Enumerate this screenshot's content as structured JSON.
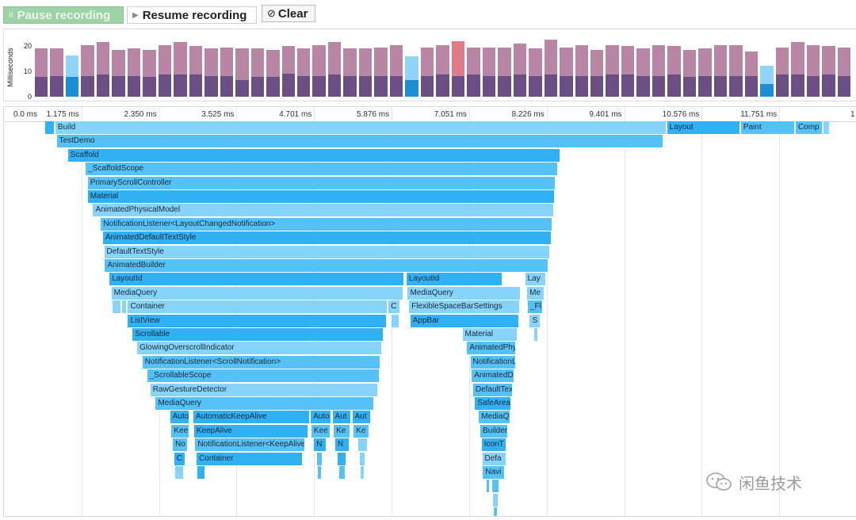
{
  "toolbar": {
    "pause_label": "Pause recording",
    "pause_glyph": "II",
    "resume_label": "Resume recording",
    "resume_glyph": "▶",
    "clear_label": "Clear",
    "clear_glyph": "⊘"
  },
  "frame_chart": {
    "y_axis_title": "Milliseconds",
    "y_ticks": [
      "20",
      "10",
      "0"
    ],
    "y_max": 22,
    "colors": {
      "cpu": "#6b4e84",
      "gpu": "#b985a5",
      "selected_cpu": "#1a8fd6",
      "selected_gpu": "#8fd4fb",
      "jank_gpu": "#e07a86"
    },
    "frames": [
      {
        "cpu": 7.5,
        "gpu": 11
      },
      {
        "cpu": 8,
        "gpu": 10.5
      },
      {
        "cpu": 7.5,
        "gpu": 8.5,
        "selected": true
      },
      {
        "cpu": 8,
        "gpu": 12
      },
      {
        "cpu": 8.5,
        "gpu": 12.5
      },
      {
        "cpu": 8,
        "gpu": 10
      },
      {
        "cpu": 8,
        "gpu": 10.5
      },
      {
        "cpu": 7.5,
        "gpu": 10.5
      },
      {
        "cpu": 8.5,
        "gpu": 11.5
      },
      {
        "cpu": 8.5,
        "gpu": 12.5
      },
      {
        "cpu": 8.5,
        "gpu": 11
      },
      {
        "cpu": 8,
        "gpu": 10.5
      },
      {
        "cpu": 8,
        "gpu": 11
      },
      {
        "cpu": 6.5,
        "gpu": 12
      },
      {
        "cpu": 7.5,
        "gpu": 11
      },
      {
        "cpu": 7.5,
        "gpu": 10.5
      },
      {
        "cpu": 9,
        "gpu": 10.5
      },
      {
        "cpu": 8,
        "gpu": 10.5
      },
      {
        "cpu": 8,
        "gpu": 12
      },
      {
        "cpu": 8.5,
        "gpu": 12.5
      },
      {
        "cpu": 8,
        "gpu": 10.5
      },
      {
        "cpu": 8,
        "gpu": 10.5
      },
      {
        "cpu": 8,
        "gpu": 11
      },
      {
        "cpu": 8,
        "gpu": 12
      },
      {
        "cpu": 6.5,
        "gpu": 9,
        "selected": true
      },
      {
        "cpu": 8,
        "gpu": 11
      },
      {
        "cpu": 8.5,
        "gpu": 11.5
      },
      {
        "cpu": 8,
        "gpu": 13.5,
        "jank": true
      },
      {
        "cpu": 8.5,
        "gpu": 10.5
      },
      {
        "cpu": 8,
        "gpu": 11
      },
      {
        "cpu": 8,
        "gpu": 11
      },
      {
        "cpu": 8.5,
        "gpu": 12
      },
      {
        "cpu": 8,
        "gpu": 10.5
      },
      {
        "cpu": 8.5,
        "gpu": 13.5
      },
      {
        "cpu": 8,
        "gpu": 11
      },
      {
        "cpu": 8,
        "gpu": 12
      },
      {
        "cpu": 8,
        "gpu": 10
      },
      {
        "cpu": 8.5,
        "gpu": 11.5
      },
      {
        "cpu": 8.5,
        "gpu": 11
      },
      {
        "cpu": 8,
        "gpu": 10.5
      },
      {
        "cpu": 8,
        "gpu": 12
      },
      {
        "cpu": 8.5,
        "gpu": 11
      },
      {
        "cpu": 7.5,
        "gpu": 10.5
      },
      {
        "cpu": 8,
        "gpu": 10.5
      },
      {
        "cpu": 8,
        "gpu": 12
      },
      {
        "cpu": 8,
        "gpu": 12
      },
      {
        "cpu": 8,
        "gpu": 9.5
      },
      {
        "cpu": 5,
        "gpu": 7,
        "selected": true
      },
      {
        "cpu": 8.5,
        "gpu": 10.5
      },
      {
        "cpu": 8.5,
        "gpu": 12.5
      },
      {
        "cpu": 8,
        "gpu": 12
      },
      {
        "cpu": 8.5,
        "gpu": 11
      },
      {
        "cpu": 8,
        "gpu": 11
      }
    ]
  },
  "timeline": {
    "total_ms": 12.926,
    "ticks": [
      {
        "label": "0.0 ms",
        "ms": 0
      },
      {
        "label": "1.175 ms",
        "ms": 1.175
      },
      {
        "label": "2.350 ms",
        "ms": 2.35
      },
      {
        "label": "3.525 ms",
        "ms": 3.525
      },
      {
        "label": "4.701 ms",
        "ms": 4.701
      },
      {
        "label": "5.876 ms",
        "ms": 5.876
      },
      {
        "label": "7.051 ms",
        "ms": 7.051
      },
      {
        "label": "8.226 ms",
        "ms": 8.226
      },
      {
        "label": "9.401 ms",
        "ms": 9.401
      },
      {
        "label": "10.576 ms",
        "ms": 10.576
      },
      {
        "label": "11.751 ms",
        "ms": 11.751
      },
      {
        "label": "1",
        "ms": 12.926
      }
    ],
    "nodes": [
      {
        "label": "",
        "depth": 0,
        "start": 0.62,
        "end": 0.76,
        "shade": "dark"
      },
      {
        "label": "Build",
        "depth": 0,
        "start": 0.78,
        "end": 10.03,
        "shade": "light"
      },
      {
        "label": "Layout",
        "depth": 0,
        "start": 10.05,
        "end": 11.15,
        "shade": "dark"
      },
      {
        "label": "Paint",
        "depth": 0,
        "start": 11.17,
        "end": 11.98,
        "shade": "mid"
      },
      {
        "label": "Comp",
        "depth": 0,
        "start": 12.0,
        "end": 12.4,
        "shade": "mid"
      },
      {
        "label": "",
        "depth": 0,
        "start": 12.42,
        "end": 12.5,
        "shade": "light"
      },
      {
        "label": "TestDemo",
        "depth": 1,
        "start": 0.8,
        "end": 9.98,
        "shade": "mid"
      },
      {
        "label": "Scaffold",
        "depth": 2,
        "start": 0.97,
        "end": 8.42,
        "shade": "dark"
      },
      {
        "label": "_ScaffoldScope",
        "depth": 3,
        "start": 1.24,
        "end": 8.39,
        "shade": "mid"
      },
      {
        "label": "PrimaryScrollController",
        "depth": 4,
        "start": 1.27,
        "end": 8.35,
        "shade": "mid"
      },
      {
        "label": "Material",
        "depth": 5,
        "start": 1.27,
        "end": 8.34,
        "shade": "dark"
      },
      {
        "label": "AnimatedPhysicalModel",
        "depth": 6,
        "start": 1.35,
        "end": 8.32,
        "shade": "light"
      },
      {
        "label": "NotificationListener<LayoutChangedNotification>",
        "depth": 7,
        "start": 1.47,
        "end": 8.3,
        "shade": "mid"
      },
      {
        "label": "AnimatedDefaultTextStyle",
        "depth": 8,
        "start": 1.5,
        "end": 8.29,
        "shade": "dark"
      },
      {
        "label": "DefaultTextStyle",
        "depth": 9,
        "start": 1.52,
        "end": 8.26,
        "shade": "light"
      },
      {
        "label": "AnimatedBuilder",
        "depth": 10,
        "start": 1.53,
        "end": 8.24,
        "shade": "mid"
      },
      {
        "label": "LayoutId",
        "depth": 11,
        "start": 1.6,
        "end": 6.05,
        "shade": "dark"
      },
      {
        "label": "LayoutId",
        "depth": 11,
        "start": 6.1,
        "end": 7.55,
        "shade": "dark"
      },
      {
        "label": "Lay",
        "depth": 11,
        "start": 7.9,
        "end": 8.2,
        "shade": "light"
      },
      {
        "label": "MediaQuery",
        "depth": 12,
        "start": 1.63,
        "end": 6.04,
        "shade": "light"
      },
      {
        "label": "MediaQuery",
        "depth": 12,
        "start": 6.12,
        "end": 7.82,
        "shade": "light"
      },
      {
        "label": "Me",
        "depth": 12,
        "start": 7.93,
        "end": 8.18,
        "shade": "light"
      },
      {
        "label": "",
        "depth": 13,
        "start": 1.64,
        "end": 1.77,
        "shade": "light"
      },
      {
        "label": "",
        "depth": 13,
        "start": 1.79,
        "end": 1.85,
        "shade": "light"
      },
      {
        "label": "Container",
        "depth": 13,
        "start": 1.88,
        "end": 5.8,
        "shade": "light"
      },
      {
        "label": "C",
        "depth": 13,
        "start": 5.83,
        "end": 6.0,
        "shade": "light"
      },
      {
        "label": "FlexibleSpaceBarSettings",
        "depth": 13,
        "start": 6.14,
        "end": 7.81,
        "shade": "light"
      },
      {
        "label": "_Fl",
        "depth": 13,
        "start": 7.94,
        "end": 8.16,
        "shade": "mid"
      },
      {
        "label": "ListView",
        "depth": 14,
        "start": 1.88,
        "end": 5.79,
        "shade": "dark"
      },
      {
        "label": "",
        "depth": 14,
        "start": 5.88,
        "end": 5.98,
        "shade": "light"
      },
      {
        "label": "AppBar",
        "depth": 14,
        "start": 6.16,
        "end": 7.8,
        "shade": "dark"
      },
      {
        "label": "S",
        "depth": 14,
        "start": 7.97,
        "end": 8.12,
        "shade": "light"
      },
      {
        "label": "Scrollable",
        "depth": 15,
        "start": 1.95,
        "end": 5.74,
        "shade": "dark"
      },
      {
        "label": "Material",
        "depth": 15,
        "start": 6.95,
        "end": 7.77,
        "shade": "light"
      },
      {
        "label": "",
        "depth": 15,
        "start": 8.04,
        "end": 8.09,
        "shade": "light"
      },
      {
        "label": "GlowingOverscrollIndicator",
        "depth": 16,
        "start": 2.02,
        "end": 5.72,
        "shade": "light"
      },
      {
        "label": "AnimatedPhy",
        "depth": 16,
        "start": 7.02,
        "end": 7.75,
        "shade": "mid"
      },
      {
        "label": "NotificationListener<ScrollNotification>",
        "depth": 17,
        "start": 2.1,
        "end": 5.7,
        "shade": "mid"
      },
      {
        "label": "NotificationL",
        "depth": 17,
        "start": 7.07,
        "end": 7.75,
        "shade": "mid"
      },
      {
        "label": "_ScrollableScope",
        "depth": 18,
        "start": 2.17,
        "end": 5.68,
        "shade": "mid"
      },
      {
        "label": "AnimatedD",
        "depth": 18,
        "start": 7.09,
        "end": 7.72,
        "shade": "mid"
      },
      {
        "label": "RawGestureDetector",
        "depth": 19,
        "start": 2.22,
        "end": 5.66,
        "shade": "light"
      },
      {
        "label": "DefaultTex",
        "depth": 19,
        "start": 7.11,
        "end": 7.7,
        "shade": "mid"
      },
      {
        "label": "MediaQuery",
        "depth": 20,
        "start": 2.3,
        "end": 5.6,
        "shade": "mid"
      },
      {
        "label": "SafeArea",
        "depth": 20,
        "start": 7.14,
        "end": 7.68,
        "shade": "dark"
      },
      {
        "label": "Auto",
        "depth": 21,
        "start": 2.52,
        "end": 2.8,
        "shade": "dark"
      },
      {
        "label": "AutomaticKeepAlive",
        "depth": 21,
        "start": 2.87,
        "end": 4.62,
        "shade": "dark"
      },
      {
        "label": "Auto",
        "depth": 21,
        "start": 4.65,
        "end": 4.95,
        "shade": "dark"
      },
      {
        "label": "Aut",
        "depth": 21,
        "start": 4.98,
        "end": 5.25,
        "shade": "dark"
      },
      {
        "label": "Aut",
        "depth": 21,
        "start": 5.28,
        "end": 5.55,
        "shade": "dark"
      },
      {
        "label": "MediaQ",
        "depth": 21,
        "start": 7.2,
        "end": 7.66,
        "shade": "mid"
      },
      {
        "label": "Kee",
        "depth": 22,
        "start": 2.54,
        "end": 2.8,
        "shade": "mid"
      },
      {
        "label": "KeepAlive",
        "depth": 22,
        "start": 2.88,
        "end": 4.6,
        "shade": "dark"
      },
      {
        "label": "Kee",
        "depth": 22,
        "start": 4.66,
        "end": 4.94,
        "shade": "mid"
      },
      {
        "label": "Ke",
        "depth": 22,
        "start": 5.0,
        "end": 5.24,
        "shade": "mid"
      },
      {
        "label": "Ke",
        "depth": 22,
        "start": 5.3,
        "end": 5.53,
        "shade": "mid"
      },
      {
        "label": "Builder",
        "depth": 22,
        "start": 7.22,
        "end": 7.63,
        "shade": "mid"
      },
      {
        "label": "No",
        "depth": 23,
        "start": 2.56,
        "end": 2.78,
        "shade": "mid"
      },
      {
        "label": "NotificationListener<KeepAliveN",
        "depth": 23,
        "start": 2.9,
        "end": 4.55,
        "shade": "mid"
      },
      {
        "label": "N",
        "depth": 23,
        "start": 4.7,
        "end": 4.88,
        "shade": "dark"
      },
      {
        "label": "N",
        "depth": 23,
        "start": 5.02,
        "end": 5.22,
        "shade": "dark"
      },
      {
        "label": "",
        "depth": 23,
        "start": 5.37,
        "end": 5.5,
        "shade": "light"
      },
      {
        "label": "IconT",
        "depth": 23,
        "start": 7.24,
        "end": 7.61,
        "shade": "dark"
      },
      {
        "label": "C",
        "depth": 24,
        "start": 2.58,
        "end": 2.74,
        "shade": "dark"
      },
      {
        "label": "Container",
        "depth": 24,
        "start": 2.92,
        "end": 4.52,
        "shade": "dark"
      },
      {
        "label": "",
        "depth": 24,
        "start": 4.74,
        "end": 4.82,
        "shade": "mid"
      },
      {
        "label": "",
        "depth": 24,
        "start": 5.06,
        "end": 5.18,
        "shade": "dark"
      },
      {
        "label": "",
        "depth": 24,
        "start": 5.39,
        "end": 5.47,
        "shade": "light"
      },
      {
        "label": "Defa",
        "depth": 24,
        "start": 7.25,
        "end": 7.6,
        "shade": "light"
      },
      {
        "label": "",
        "depth": 25,
        "start": 2.6,
        "end": 2.72,
        "shade": "light"
      },
      {
        "label": "",
        "depth": 25,
        "start": 2.93,
        "end": 3.04,
        "shade": "dark"
      },
      {
        "label": "",
        "depth": 25,
        "start": 4.76,
        "end": 4.81,
        "shade": "mid"
      },
      {
        "label": "",
        "depth": 25,
        "start": 5.08,
        "end": 5.16,
        "shade": "mid"
      },
      {
        "label": "",
        "depth": 25,
        "start": 5.4,
        "end": 5.45,
        "shade": "light"
      },
      {
        "label": "Navi",
        "depth": 25,
        "start": 7.26,
        "end": 7.58,
        "shade": "mid"
      },
      {
        "label": "",
        "depth": 26,
        "start": 7.32,
        "end": 7.35,
        "shade": "mid"
      },
      {
        "label": "",
        "depth": 26,
        "start": 7.4,
        "end": 7.5,
        "shade": "mid"
      },
      {
        "label": "",
        "depth": 27,
        "start": 7.41,
        "end": 7.49,
        "shade": "light"
      },
      {
        "label": "",
        "depth": 28,
        "start": 7.43,
        "end": 7.47,
        "shade": "mid"
      }
    ]
  },
  "watermark": {
    "text": "闲鱼技术"
  }
}
